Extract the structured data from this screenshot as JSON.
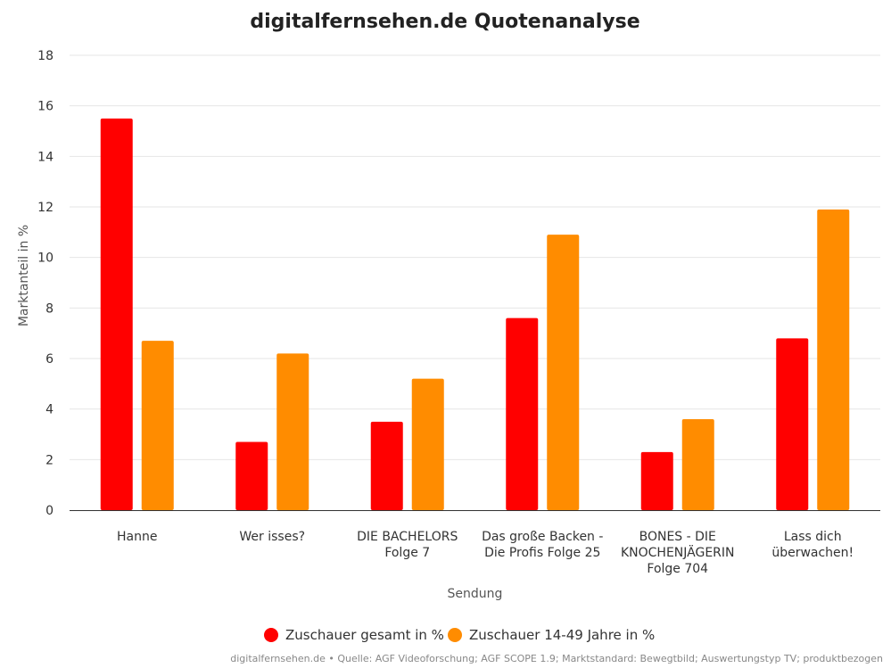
{
  "chart_data": {
    "type": "bar",
    "title": "digitalfernsehen.de Quotenanalyse",
    "xlabel": "Sendung",
    "ylabel": "Marktanteil in %",
    "ylim": [
      0,
      18
    ],
    "yticks": [
      0,
      2,
      4,
      6,
      8,
      10,
      12,
      14,
      16,
      18
    ],
    "grid": true,
    "legend_position": "bottom-center",
    "categories": [
      [
        "Hanne"
      ],
      [
        "Wer isses?"
      ],
      [
        "DIE BACHELORS",
        "Folge 7"
      ],
      [
        "Das große Backen -",
        "Die Profis Folge 25"
      ],
      [
        "BONES - DIE",
        "KNOCHENJÄGERIN",
        "Folge 704"
      ],
      [
        "Lass dich",
        "überwachen!"
      ]
    ],
    "series": [
      {
        "name": "Zuschauer gesamt in %",
        "color": "#ff0000",
        "values": [
          15.5,
          2.7,
          3.5,
          7.6,
          2.3,
          6.8
        ]
      },
      {
        "name": "Zuschauer 14-49 Jahre in %",
        "color": "#ff8c00",
        "values": [
          6.7,
          6.2,
          5.2,
          10.9,
          3.6,
          11.9
        ]
      }
    ],
    "credits": "digitalfernsehen.de • Quelle: AGF Videoforschung; AGF SCOPE 1.9; Marktstandard: Bewegtbild; Auswertungstyp TV; produktbezogen",
    "colors": {
      "grid": "#e6e6e6",
      "axis": "#333333"
    }
  }
}
